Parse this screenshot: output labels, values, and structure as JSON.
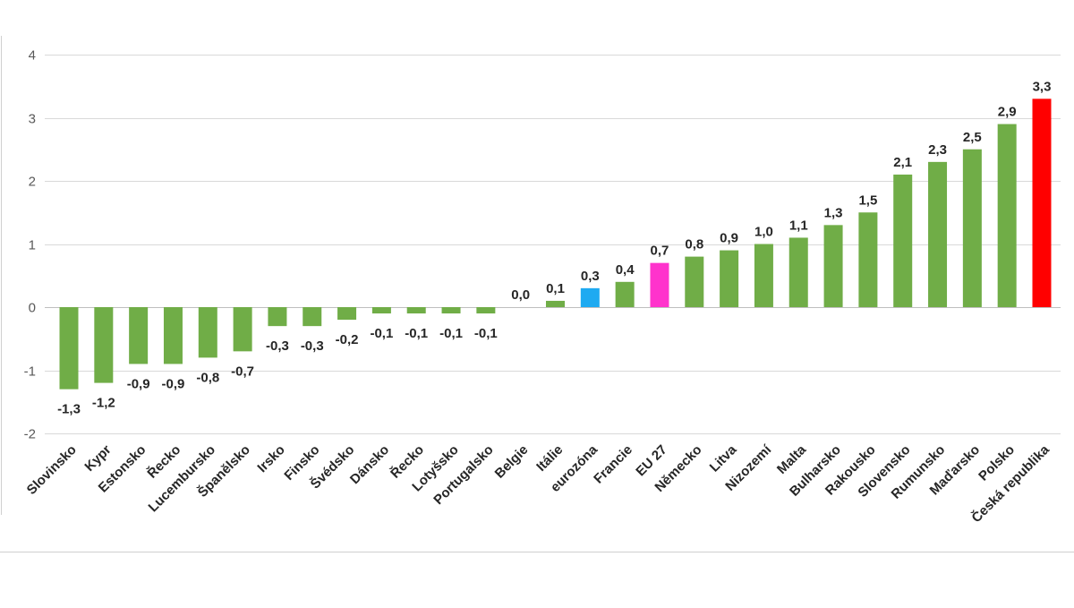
{
  "chart_data": {
    "type": "bar",
    "title": "",
    "xlabel": "",
    "ylabel": "",
    "ylim": [
      -2,
      4
    ],
    "yticks": [
      -2,
      -1,
      0,
      1,
      2,
      3,
      4
    ],
    "grid": true,
    "legend": "none",
    "colors": {
      "default": "#70ad47",
      "eurozona": "#1eaaf1",
      "eu27": "#ff33cc",
      "czech": "#ff0000"
    },
    "categories": [
      "Slovinsko",
      "Kypr",
      "Estonsko",
      "Řecko",
      "Lucembursko",
      "Španělsko",
      "Irsko",
      "Finsko",
      "Švédsko",
      "Dánsko",
      "Řecko",
      "Lotyšsko",
      "Portugalsko",
      "Belgie",
      "Itálie",
      "eurozóna",
      "Francie",
      "EU 27",
      "Německo",
      "Litva",
      "Nizozemí",
      "Malta",
      "Bulharsko",
      "Rakousko",
      "Slovensko",
      "Rumunsko",
      "Maďarsko",
      "Polsko",
      "Česká republika"
    ],
    "values": [
      -1.3,
      -1.2,
      -0.9,
      -0.9,
      -0.8,
      -0.7,
      -0.3,
      -0.3,
      -0.2,
      -0.1,
      -0.1,
      -0.1,
      -0.1,
      0.0,
      0.1,
      0.3,
      0.4,
      0.7,
      0.8,
      0.9,
      1.0,
      1.1,
      1.3,
      1.5,
      2.1,
      2.3,
      2.5,
      2.9,
      3.3
    ],
    "value_labels": [
      "-1,3",
      "-1,2",
      "-0,9",
      "-0,9",
      "-0,8",
      "-0,7",
      "-0,3",
      "-0,3",
      "-0,2",
      "-0,1",
      "-0,1",
      "-0,1",
      "-0,1",
      "0,0",
      "0,1",
      "0,3",
      "0,4",
      "0,7",
      "0,8",
      "0,9",
      "1,0",
      "1,1",
      "1,3",
      "1,5",
      "2,1",
      "2,3",
      "2,5",
      "2,9",
      "3,3"
    ],
    "bar_colors": [
      "default",
      "default",
      "default",
      "default",
      "default",
      "default",
      "default",
      "default",
      "default",
      "default",
      "default",
      "default",
      "default",
      "default",
      "default",
      "eurozona",
      "default",
      "eu27",
      "default",
      "default",
      "default",
      "default",
      "default",
      "default",
      "default",
      "default",
      "default",
      "default",
      "czech"
    ]
  }
}
